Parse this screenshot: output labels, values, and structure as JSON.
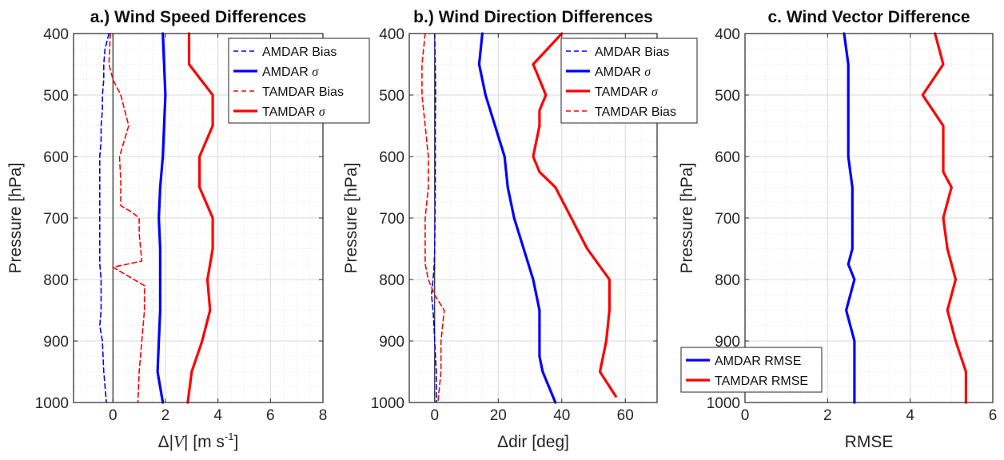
{
  "colors": {
    "amdar": "#0000ff",
    "tamdar": "#ff0000",
    "zero_line": "#000000",
    "grid": "#d9d9d9"
  },
  "chart_data": [
    {
      "type": "line",
      "title": "a.) Wind Speed Differences",
      "xlabel": "Δ|V| [m s⁻¹]",
      "xlabel_parts": [
        "Δ|",
        "V",
        "| [m s",
        "-1",
        "]"
      ],
      "ylabel": "Pressure [hPa]",
      "xlim": [
        -1.5,
        8
      ],
      "ylim": [
        1000,
        400
      ],
      "y_reversed": true,
      "xticks": [
        0,
        2,
        4,
        6,
        8
      ],
      "yticks": [
        400,
        500,
        600,
        700,
        800,
        900,
        1000
      ],
      "grid": true,
      "minor_grid": true,
      "zero_line": true,
      "legend_placement": "top-right",
      "series": [
        {
          "name": "AMDAR Bias",
          "color": "blue",
          "style": "dashed",
          "x": [
            -0.15,
            -0.3,
            -0.35,
            -0.35,
            -0.4,
            -0.4,
            -0.45,
            -0.45,
            -0.5,
            -0.5,
            -0.5,
            -0.5,
            -0.5,
            -0.5,
            -0.5,
            -0.5,
            -0.45,
            -0.45,
            -0.45,
            -0.5,
            -0.4,
            -0.35,
            -0.25
          ],
          "y": [
            400,
            425,
            450,
            475,
            500,
            525,
            550,
            575,
            600,
            625,
            650,
            675,
            700,
            725,
            750,
            775,
            800,
            825,
            850,
            875,
            900,
            950,
            1000
          ]
        },
        {
          "name": "AMDAR σ",
          "color": "blue",
          "style": "solid",
          "x": [
            1.9,
            1.95,
            2.0,
            1.95,
            1.9,
            1.8,
            1.75,
            1.8,
            1.8,
            1.8,
            1.75,
            1.7,
            1.8,
            1.9
          ],
          "y": [
            400,
            450,
            500,
            550,
            600,
            650,
            700,
            750,
            800,
            850,
            900,
            950,
            975,
            1000
          ]
        },
        {
          "name": "TAMDAR Bias",
          "color": "red",
          "style": "dashed",
          "x": [
            -0.1,
            -0.15,
            0.0,
            0.3,
            0.6,
            0.25,
            0.3,
            0.3,
            0.3,
            0.7,
            1.0,
            1.0,
            1.1,
            0.0,
            1.2,
            1.2,
            1.1,
            1.0,
            0.95
          ],
          "y": [
            400,
            450,
            475,
            500,
            550,
            600,
            640,
            660,
            680,
            690,
            700,
            725,
            770,
            780,
            810,
            850,
            900,
            950,
            1000
          ]
        },
        {
          "name": "TAMDAR σ",
          "color": "red",
          "style": "solid",
          "x": [
            2.9,
            2.9,
            3.8,
            3.8,
            3.8,
            3.3,
            3.3,
            3.3,
            3.8,
            3.8,
            3.6,
            3.7,
            3.4,
            3.0,
            2.85
          ],
          "y": [
            400,
            450,
            500,
            525,
            550,
            600,
            625,
            650,
            700,
            750,
            800,
            850,
            900,
            950,
            1000
          ]
        }
      ]
    },
    {
      "type": "line",
      "title": "b.) Wind Direction Differences",
      "xlabel": "Δdir [deg]",
      "xlabel_parts": [
        "Δdir [deg]"
      ],
      "ylabel": "Pressure [hPa]",
      "xlim": [
        -8,
        70
      ],
      "ylim": [
        1000,
        400
      ],
      "y_reversed": true,
      "xticks": [
        0,
        20,
        40,
        60
      ],
      "yticks": [
        400,
        500,
        600,
        700,
        800,
        900,
        1000
      ],
      "grid": true,
      "minor_grid": true,
      "zero_line": true,
      "legend_placement": "top-right",
      "series": [
        {
          "name": "AMDAR Bias",
          "color": "blue",
          "style": "dashed",
          "x": [
            0.0,
            0.2,
            0.3,
            0.2,
            0.2,
            0.2,
            0.1,
            0.0,
            -0.2,
            -0.5,
            -1.0,
            -0.5,
            0.0,
            0.5,
            0.5
          ],
          "y": [
            400,
            450,
            500,
            550,
            600,
            650,
            700,
            750,
            780,
            800,
            825,
            850,
            900,
            950,
            1000
          ]
        },
        {
          "name": "AMDAR σ",
          "color": "blue",
          "style": "solid",
          "x": [
            15,
            14,
            16,
            19,
            22,
            23,
            25,
            28,
            31,
            33,
            33,
            33,
            34,
            38
          ],
          "y": [
            400,
            450,
            500,
            550,
            600,
            650,
            700,
            750,
            800,
            850,
            900,
            925,
            950,
            1000
          ]
        },
        {
          "name": "TAMDAR σ",
          "color": "red",
          "style": "solid",
          "x": [
            40,
            31,
            35,
            33,
            33,
            31,
            33,
            38,
            43,
            48,
            55,
            55,
            54,
            52,
            57
          ],
          "y": [
            400,
            450,
            500,
            525,
            550,
            600,
            625,
            650,
            700,
            750,
            800,
            850,
            900,
            950,
            990
          ]
        },
        {
          "name": "TAMDAR Bias",
          "color": "red",
          "style": "dashed",
          "x": [
            -3,
            -4,
            -4,
            -3,
            -2,
            -2,
            -3,
            -3,
            -3,
            -3,
            -2,
            0,
            3,
            2,
            2,
            1
          ],
          "y": [
            400,
            450,
            500,
            550,
            600,
            650,
            700,
            725,
            750,
            775,
            800,
            825,
            850,
            900,
            950,
            1000
          ]
        }
      ]
    },
    {
      "type": "line",
      "title": "c. Wind Vector Difference",
      "xlabel": "RMSE",
      "xlabel_parts": [
        "RMSE"
      ],
      "ylabel": "Pressure [hPa]",
      "xlim": [
        0,
        6
      ],
      "ylim": [
        1000,
        400
      ],
      "y_reversed": true,
      "xticks": [
        0,
        2,
        4,
        6
      ],
      "yticks": [
        400,
        500,
        600,
        700,
        800,
        900,
        1000
      ],
      "grid": true,
      "minor_grid": true,
      "zero_line": false,
      "legend_placement": "bottom-left",
      "series": [
        {
          "name": "AMDAR RMSE",
          "color": "blue",
          "style": "solid",
          "x": [
            2.4,
            2.5,
            2.5,
            2.5,
            2.5,
            2.6,
            2.6,
            2.6,
            2.5,
            2.65,
            2.45,
            2.65,
            2.65,
            2.65
          ],
          "y": [
            400,
            450,
            500,
            550,
            600,
            650,
            700,
            750,
            775,
            800,
            850,
            900,
            950,
            1000
          ]
        },
        {
          "name": "TAMDAR RMSE",
          "color": "red",
          "style": "solid",
          "x": [
            4.6,
            4.8,
            4.3,
            4.8,
            4.8,
            4.8,
            5.0,
            4.8,
            4.9,
            5.1,
            4.9,
            5.1,
            5.35,
            5.35
          ],
          "y": [
            400,
            450,
            500,
            550,
            600,
            625,
            650,
            700,
            750,
            800,
            850,
            900,
            950,
            1000
          ]
        }
      ]
    }
  ]
}
